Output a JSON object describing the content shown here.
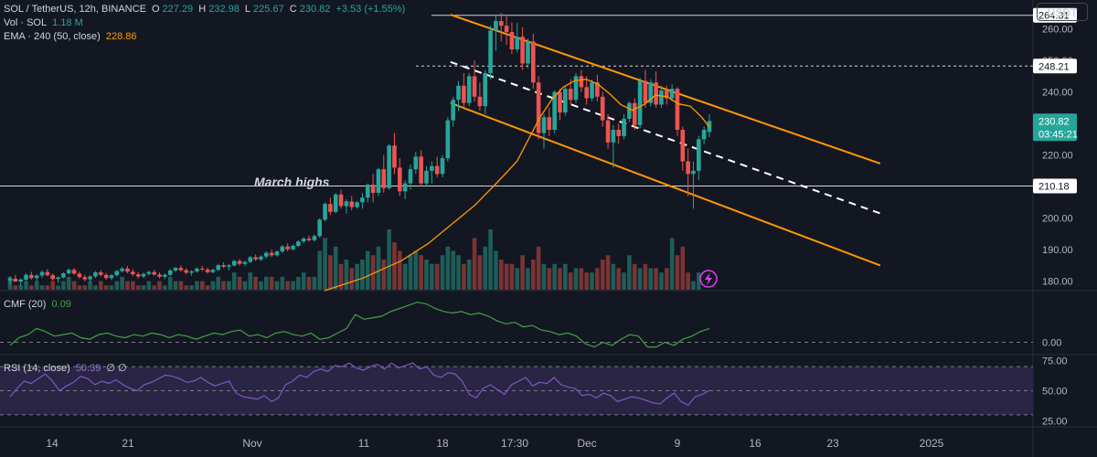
{
  "header": {
    "symbol": "SOL / TetherUS, 12h, BINANCE",
    "o_label": "O",
    "o_value": "227.29",
    "h_label": "H",
    "h_value": "232.98",
    "l_label": "L",
    "l_value": "225.67",
    "c_label": "C",
    "c_value": "230.82",
    "change": "+3.53 (+1.55%)",
    "vol_label": "Vol · SOL",
    "vol_value": "1.18 M",
    "ema_label": "EMA · 240 (50, close)",
    "ema_value": "228.86",
    "currency": "USDT"
  },
  "colors": {
    "background": "#131722",
    "up": "#26a69a",
    "down": "#ef5350",
    "ema": "#ff9800",
    "channel": "#ff9800",
    "cmf": "#43a047",
    "rsi": "#7e57c2",
    "rsi_band": "#2a2545"
  },
  "chart_data": {
    "type": "candlestick",
    "x_ticks": [
      "14",
      "21",
      "Nov",
      "11",
      "18",
      "17:30",
      "Dec",
      "9",
      "16",
      "23",
      "2025"
    ],
    "y_ticks": [
      "180.00",
      "190.00",
      "200.00",
      "210.00",
      "220.00",
      "230.00",
      "240.00",
      "250.00",
      "260.00"
    ],
    "ylim": [
      177,
      268
    ],
    "price_labels": {
      "high_line": "264.31",
      "mid_line": "248.21",
      "low_line": "210.18",
      "last": "230.82",
      "countdown": "03:45:21"
    },
    "annotation": "March highs",
    "candles": [
      [
        180.2,
        181.5,
        179.0,
        180.8
      ],
      [
        180.8,
        182.0,
        179.8,
        179.9
      ],
      [
        179.9,
        181.0,
        178.5,
        180.5
      ],
      [
        180.5,
        182.5,
        180.0,
        182.0
      ],
      [
        182.0,
        183.0,
        180.5,
        181.0
      ],
      [
        181.0,
        182.2,
        179.9,
        181.8
      ],
      [
        181.8,
        183.5,
        181.0,
        182.9
      ],
      [
        182.9,
        183.8,
        181.5,
        181.9
      ],
      [
        181.9,
        182.5,
        180.2,
        180.7
      ],
      [
        180.7,
        181.5,
        179.5,
        181.2
      ],
      [
        181.2,
        182.8,
        180.8,
        182.5
      ],
      [
        182.5,
        184.0,
        182.0,
        183.6
      ],
      [
        183.6,
        184.2,
        182.0,
        182.4
      ],
      [
        182.4,
        183.0,
        180.8,
        181.3
      ],
      [
        181.3,
        182.0,
        179.9,
        180.6
      ],
      [
        180.6,
        181.8,
        179.8,
        181.5
      ],
      [
        181.5,
        183.2,
        181.0,
        182.8
      ],
      [
        182.8,
        183.5,
        181.5,
        182.0
      ],
      [
        182.0,
        182.6,
        180.5,
        181.0
      ],
      [
        181.0,
        182.2,
        180.4,
        181.9
      ],
      [
        181.9,
        183.6,
        181.5,
        183.2
      ],
      [
        183.2,
        184.5,
        182.8,
        184.0
      ],
      [
        184.0,
        184.8,
        182.5,
        183.0
      ],
      [
        183.0,
        183.9,
        181.6,
        182.2
      ],
      [
        182.2,
        183.0,
        180.8,
        181.5
      ],
      [
        181.5,
        182.7,
        181.0,
        182.3
      ],
      [
        182.3,
        183.4,
        181.8,
        182.9
      ],
      [
        182.9,
        183.6,
        181.7,
        182.1
      ],
      [
        182.1,
        182.8,
        180.9,
        181.4
      ],
      [
        181.4,
        182.5,
        180.7,
        182.0
      ],
      [
        182.0,
        183.8,
        181.6,
        183.4
      ],
      [
        183.4,
        184.6,
        182.9,
        184.2
      ],
      [
        184.2,
        185.0,
        183.0,
        183.5
      ],
      [
        183.5,
        184.1,
        182.2,
        182.7
      ],
      [
        182.7,
        183.5,
        181.8,
        183.1
      ],
      [
        183.1,
        184.4,
        182.7,
        184.0
      ],
      [
        184.0,
        184.9,
        183.3,
        183.7
      ],
      [
        183.7,
        184.3,
        182.4,
        182.9
      ],
      [
        182.9,
        184.0,
        182.5,
        183.6
      ],
      [
        183.6,
        185.5,
        183.2,
        185.1
      ],
      [
        185.1,
        186.0,
        184.2,
        184.6
      ],
      [
        184.6,
        185.4,
        183.5,
        185.0
      ],
      [
        185.0,
        186.8,
        184.6,
        186.4
      ],
      [
        186.4,
        187.0,
        185.0,
        185.5
      ],
      [
        185.5,
        186.5,
        184.8,
        186.1
      ],
      [
        186.1,
        188.0,
        185.7,
        187.6
      ],
      [
        187.6,
        188.5,
        186.4,
        186.9
      ],
      [
        186.9,
        188.2,
        186.3,
        187.8
      ],
      [
        187.8,
        189.5,
        187.2,
        189.0
      ],
      [
        189.0,
        190.0,
        187.6,
        188.2
      ],
      [
        188.2,
        189.8,
        187.8,
        189.4
      ],
      [
        189.4,
        191.5,
        189.0,
        191.0
      ],
      [
        191.0,
        192.0,
        189.5,
        190.1
      ],
      [
        190.1,
        191.6,
        189.7,
        191.2
      ],
      [
        191.2,
        193.0,
        190.8,
        192.6
      ],
      [
        192.6,
        194.0,
        192.0,
        193.5
      ],
      [
        193.5,
        194.5,
        192.5,
        193.0
      ],
      [
        193.0,
        194.8,
        192.6,
        194.3
      ],
      [
        194.3,
        200.0,
        193.8,
        199.5
      ],
      [
        199.5,
        205.0,
        198.9,
        204.5
      ],
      [
        204.5,
        206.5,
        201.0,
        202.0
      ],
      [
        202.0,
        208.0,
        201.5,
        207.5
      ],
      [
        207.5,
        209.0,
        203.0,
        203.8
      ],
      [
        203.8,
        206.0,
        201.5,
        205.3
      ],
      [
        205.3,
        207.0,
        202.5,
        203.5
      ],
      [
        203.5,
        205.5,
        203.0,
        205.0
      ],
      [
        205.0,
        208.0,
        203.0,
        206.5
      ],
      [
        206.5,
        211.0,
        205.0,
        210.6
      ],
      [
        210.6,
        214.0,
        205.0,
        208.0
      ],
      [
        208.0,
        216.0,
        207.0,
        215.5
      ],
      [
        215.5,
        220.0,
        208.0,
        209.5
      ],
      [
        209.5,
        223.5,
        209.0,
        223.0
      ],
      [
        223.0,
        227.0,
        214.0,
        216.0
      ],
      [
        216.0,
        219.0,
        207.0,
        208.5
      ],
      [
        208.5,
        212.0,
        206.0,
        211.0
      ],
      [
        211.0,
        217.0,
        209.0,
        215.5
      ],
      [
        215.5,
        221.0,
        214.0,
        219.5
      ],
      [
        219.5,
        221.5,
        210.0,
        211.0
      ],
      [
        211.0,
        216.5,
        210.0,
        215.0
      ],
      [
        215.0,
        218.0,
        211.0,
        216.5
      ],
      [
        216.5,
        219.5,
        213.0,
        214.0
      ],
      [
        214.0,
        220.0,
        213.0,
        219.0
      ],
      [
        219.0,
        232.0,
        218.0,
        231.0
      ],
      [
        231.0,
        238.5,
        229.0,
        237.5
      ],
      [
        237.5,
        243.5,
        234.0,
        242.0
      ],
      [
        242.0,
        246.0,
        235.0,
        236.5
      ],
      [
        236.5,
        246.0,
        235.5,
        245.0
      ],
      [
        245.0,
        250.0,
        237.0,
        238.5
      ],
      [
        238.5,
        243.0,
        234.0,
        235.5
      ],
      [
        235.5,
        247.0,
        233.0,
        246.0
      ],
      [
        246.0,
        261.0,
        244.0,
        259.5
      ],
      [
        259.5,
        264.3,
        253.0,
        262.5
      ],
      [
        262.5,
        265.0,
        256.0,
        261.0
      ],
      [
        261.0,
        264.0,
        255.0,
        259.0
      ],
      [
        259.0,
        262.0,
        252.0,
        253.5
      ],
      [
        253.5,
        262.0,
        252.5,
        257.5
      ],
      [
        257.5,
        260.5,
        247.0,
        249.0
      ],
      [
        249.0,
        257.0,
        247.5,
        256.0
      ],
      [
        256.0,
        258.5,
        241.0,
        243.0
      ],
      [
        243.0,
        245.0,
        225.0,
        227.0
      ],
      [
        227.0,
        233.0,
        222.0,
        232.0
      ],
      [
        232.0,
        235.0,
        226.0,
        228.0
      ],
      [
        228.0,
        240.5,
        227.0,
        240.0
      ],
      [
        240.0,
        241.0,
        231.0,
        233.5
      ],
      [
        233.5,
        242.0,
        232.5,
        241.0
      ],
      [
        241.0,
        244.0,
        236.0,
        237.5
      ],
      [
        237.5,
        246.0,
        236.5,
        245.0
      ],
      [
        245.0,
        247.0,
        240.0,
        241.5
      ],
      [
        241.5,
        245.0,
        236.0,
        238.0
      ],
      [
        238.0,
        244.0,
        237.0,
        243.0
      ],
      [
        243.0,
        245.5,
        237.0,
        238.5
      ],
      [
        238.5,
        240.0,
        229.0,
        231.0
      ],
      [
        231.0,
        233.0,
        222.0,
        224.0
      ],
      [
        224.0,
        229.5,
        216.0,
        228.0
      ],
      [
        228.0,
        230.0,
        223.5,
        226.0
      ],
      [
        226.0,
        233.0,
        225.0,
        231.5
      ],
      [
        231.5,
        237.0,
        230.5,
        236.5
      ],
      [
        236.5,
        238.0,
        228.0,
        229.5
      ],
      [
        229.5,
        244.5,
        228.5,
        243.5
      ],
      [
        243.5,
        247.0,
        235.0,
        236.5
      ],
      [
        236.5,
        244.0,
        235.5,
        243.0
      ],
      [
        243.0,
        246.5,
        235.0,
        236.0
      ],
      [
        236.0,
        242.0,
        235.0,
        240.5
      ],
      [
        240.5,
        242.0,
        236.0,
        238.0
      ],
      [
        238.0,
        242.5,
        237.0,
        241.0
      ],
      [
        241.0,
        241.5,
        226.0,
        228.0
      ],
      [
        228.0,
        229.0,
        215.0,
        218.0
      ],
      [
        218.0,
        222.0,
        207.0,
        214.0
      ],
      [
        214.0,
        218.0,
        203.0,
        215.0
      ],
      [
        215.0,
        226.0,
        212.0,
        225.0
      ],
      [
        225.0,
        229.0,
        223.5,
        228.0
      ],
      [
        227.29,
        232.98,
        225.67,
        230.82
      ]
    ],
    "volume": [
      3,
      1,
      1,
      2,
      1,
      2,
      1,
      1,
      2,
      1,
      2,
      3,
      2,
      1,
      1,
      2,
      1,
      2,
      1,
      1,
      2,
      3,
      2,
      2,
      1,
      1,
      2,
      1,
      2,
      1,
      3,
      2,
      2,
      1,
      1,
      2,
      2,
      1,
      2,
      3,
      2,
      2,
      4,
      3,
      2,
      4,
      3,
      2,
      3,
      3,
      2,
      3,
      2,
      2,
      3,
      4,
      3,
      3,
      9,
      12,
      8,
      10,
      6,
      7,
      5,
      6,
      7,
      9,
      8,
      10,
      7,
      14,
      11,
      9,
      6,
      8,
      9,
      8,
      7,
      6,
      6,
      8,
      10,
      9,
      8,
      6,
      7,
      12,
      8,
      10,
      14,
      9,
      7,
      6,
      6,
      5,
      8,
      5,
      7,
      10,
      6,
      5,
      6,
      5,
      6,
      4,
      5,
      5,
      4,
      4,
      5,
      7,
      8,
      6,
      5,
      4,
      8,
      6,
      5,
      6,
      5,
      5,
      4,
      5,
      12,
      8,
      10,
      4,
      2,
      4
    ],
    "ema": [
      [
        0.0,
        177.0
      ],
      [
        0.1,
        181.0
      ],
      [
        0.2,
        186.5
      ],
      [
        0.27,
        192.0
      ],
      [
        0.33,
        198.0
      ],
      [
        0.39,
        204.0
      ],
      [
        0.45,
        211.5
      ],
      [
        0.5,
        218.0
      ],
      [
        0.53,
        225.0
      ],
      [
        0.56,
        232.0
      ],
      [
        0.59,
        237.5
      ],
      [
        0.62,
        241.5
      ],
      [
        0.65,
        243.6
      ],
      [
        0.68,
        244.0
      ],
      [
        0.71,
        242.5
      ],
      [
        0.74,
        239.5
      ],
      [
        0.77,
        236.0
      ],
      [
        0.8,
        234.2
      ],
      [
        0.83,
        236.0
      ],
      [
        0.86,
        239.0
      ],
      [
        0.89,
        238.5
      ],
      [
        0.92,
        236.2
      ],
      [
        0.95,
        235.5
      ],
      [
        0.98,
        232.0
      ],
      [
        1.0,
        228.86
      ]
    ],
    "cmf_label": "CMF (20)",
    "cmf_value": "0.09",
    "cmf_ticks": [
      "0.00"
    ],
    "cmf_ylim": [
      -0.08,
      0.3
    ],
    "cmf": [
      -0.02,
      0.03,
      0.05,
      0.09,
      0.07,
      0.04,
      0.05,
      0.06,
      0.03,
      0.02,
      0.05,
      0.06,
      0.04,
      0.03,
      0.05,
      0.04,
      0.06,
      0.05,
      0.03,
      0.05,
      0.04,
      0.02,
      0.04,
      0.06,
      0.05,
      0.07,
      0.08,
      0.04,
      0.05,
      0.03,
      0.06,
      0.07,
      0.05,
      0.04,
      0.06,
      0.02,
      0.03,
      0.06,
      0.09,
      0.18,
      0.15,
      0.16,
      0.17,
      0.2,
      0.22,
      0.24,
      0.26,
      0.25,
      0.22,
      0.2,
      0.19,
      0.2,
      0.18,
      0.19,
      0.17,
      0.14,
      0.12,
      0.13,
      0.1,
      0.11,
      0.08,
      0.07,
      0.05,
      0.06,
      0.04,
      -0.01,
      -0.03,
      0.0,
      -0.02,
      0.02,
      0.05,
      0.04,
      -0.03,
      -0.03,
      0.0,
      -0.02,
      0.02,
      0.04,
      0.07,
      0.09
    ],
    "rsi_label": "RSI (14, close)",
    "rsi_value": "50.39",
    "rsi_extra": "∅ ∅",
    "rsi_ticks": [
      "75.00",
      "50.00",
      "25.00"
    ],
    "rsi_ylim": [
      20,
      80
    ],
    "rsi": [
      45,
      52,
      58,
      56,
      60,
      64,
      58,
      50,
      54,
      57,
      62,
      60,
      55,
      58,
      56,
      59,
      55,
      52,
      50,
      55,
      57,
      60,
      63,
      62,
      60,
      57,
      58,
      61,
      57,
      54,
      56,
      58,
      48,
      45,
      44,
      43,
      46,
      41,
      44,
      55,
      58,
      63,
      61,
      66,
      68,
      66,
      71,
      70,
      73,
      69,
      67,
      70,
      72,
      68,
      73,
      69,
      71,
      73,
      68,
      70,
      63,
      61,
      65,
      64,
      58,
      47,
      44,
      52,
      55,
      51,
      47,
      55,
      58,
      61,
      54,
      57,
      56,
      61,
      55,
      53,
      52,
      46,
      47,
      44,
      48,
      46,
      41,
      43,
      45,
      44,
      42,
      40,
      39,
      44,
      48,
      41,
      38,
      45,
      47,
      50.39
    ]
  }
}
